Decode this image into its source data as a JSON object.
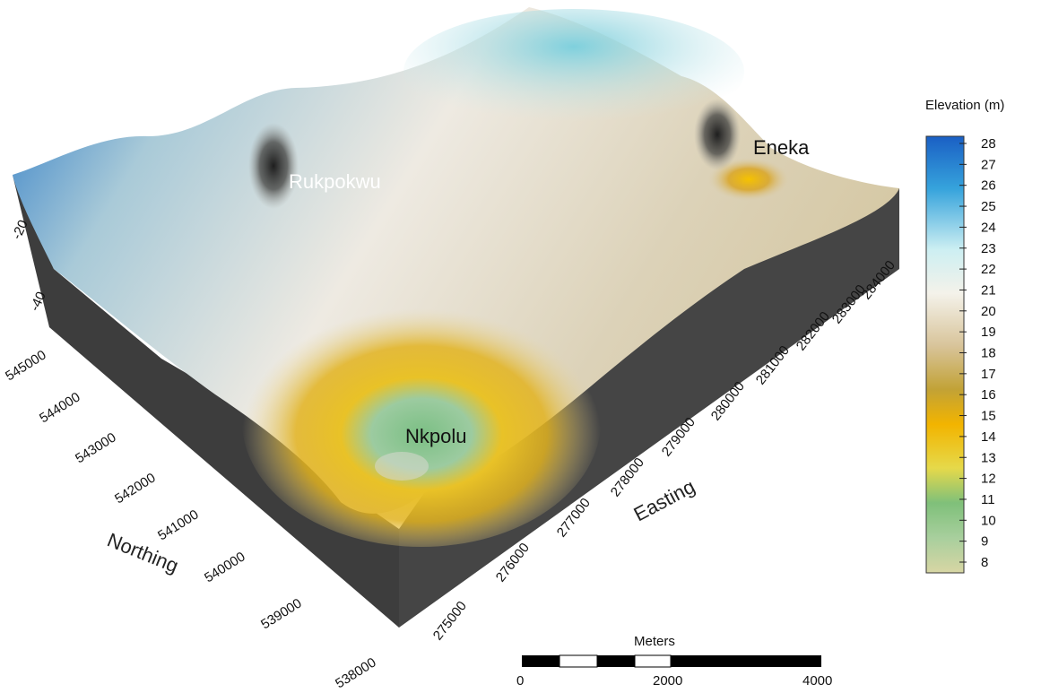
{
  "places": {
    "rukpokwu": "Rukpokwu",
    "eneka": "Eneka",
    "nkpolu": "Nkpolu"
  },
  "northing": {
    "title": "Northing",
    "ticks": [
      "545000",
      "544000",
      "543000",
      "542000",
      "541000",
      "540000",
      "539000",
      "538000"
    ]
  },
  "easting": {
    "title": "Easting",
    "ticks": [
      "275000",
      "276000",
      "277000",
      "278000",
      "279000",
      "280000",
      "281000",
      "282000",
      "283000",
      "284000"
    ]
  },
  "depth_ticks": [
    "-20",
    "-40"
  ],
  "legend": {
    "title": "Elevation (m)",
    "ticks": [
      "28",
      "27",
      "26",
      "25",
      "24",
      "23",
      "22",
      "21",
      "20",
      "19",
      "18",
      "17",
      "16",
      "15",
      "14",
      "13",
      "12",
      "11",
      "10",
      "9",
      "8"
    ],
    "colors": {
      "high": "#1a66c8",
      "mid": "#f0eee6",
      "low_mid": "#f2b400",
      "low": "#6fb46f",
      "bottom": "#d8d6a4"
    }
  },
  "scale_bar": {
    "title": "Meters",
    "labels": [
      "0",
      "2000",
      "4000"
    ]
  },
  "colors": {
    "block_side": "#3e3e3e",
    "surface_mid": "#efe9dd"
  }
}
